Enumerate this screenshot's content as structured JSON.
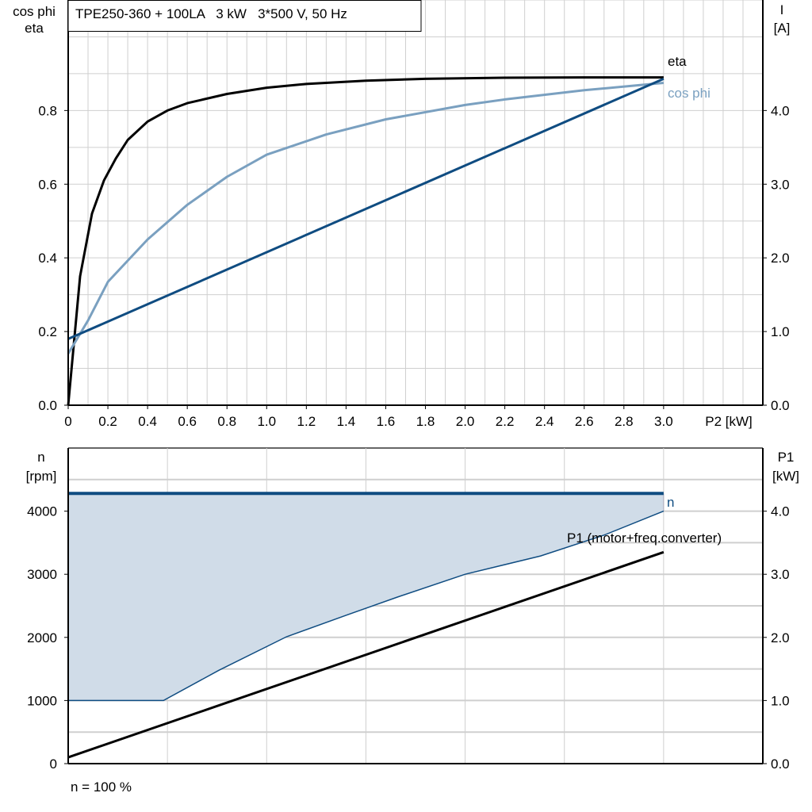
{
  "chart_data": [
    {
      "type": "line",
      "title": "TPE250-360 + 100LA   3 kW   3*500 V, 50 Hz",
      "xlabel": "P2 [kW]",
      "ylabel_left": [
        "cos phi",
        "eta"
      ],
      "ylabel_right": [
        "I",
        "[A]"
      ],
      "xlim": [
        0,
        3.5
      ],
      "ylim_left": [
        0,
        1.1
      ],
      "ylim_right": [
        0,
        5.5
      ],
      "grid": true,
      "x_ticks": [
        "0",
        "0.2",
        "0.4",
        "0.6",
        "0.8",
        "1.0",
        "1.2",
        "1.4",
        "1.6",
        "1.8",
        "2.0",
        "2.2",
        "2.4",
        "2.6",
        "2.8",
        "3.0"
      ],
      "y_ticks_left": [
        "0.0",
        "0.2",
        "0.4",
        "0.6",
        "0.8"
      ],
      "y_ticks_right": [
        "0.0",
        "1.0",
        "2.0",
        "3.0",
        "4.0"
      ],
      "series": [
        {
          "name": "eta",
          "axis": "left",
          "color": "#000000",
          "x": [
            0,
            0.06,
            0.12,
            0.18,
            0.24,
            0.3,
            0.4,
            0.5,
            0.6,
            0.8,
            1.0,
            1.2,
            1.5,
            1.8,
            2.2,
            2.6,
            3.0
          ],
          "y": [
            0,
            0.35,
            0.52,
            0.61,
            0.67,
            0.72,
            0.77,
            0.8,
            0.82,
            0.845,
            0.862,
            0.872,
            0.881,
            0.886,
            0.889,
            0.89,
            0.89
          ]
        },
        {
          "name": "cos phi",
          "axis": "left",
          "color": "#7aa0c0",
          "x": [
            0,
            0.1,
            0.2,
            0.4,
            0.6,
            0.8,
            1.0,
            1.3,
            1.6,
            2.0,
            2.2,
            2.6,
            3.0
          ],
          "y": [
            0.14,
            0.23,
            0.335,
            0.45,
            0.544,
            0.62,
            0.68,
            0.735,
            0.776,
            0.815,
            0.83,
            0.855,
            0.875
          ]
        },
        {
          "axis": "right",
          "color": "#0f4c81",
          "x": [
            0,
            3.0
          ],
          "y": [
            0.9,
            4.43
          ]
        }
      ]
    },
    {
      "type": "area",
      "xlabel": "",
      "ylabel_left": [
        "n",
        "[rpm]"
      ],
      "ylabel_right": [
        "P1",
        "[kW]"
      ],
      "xlim": [
        0,
        3.5
      ],
      "ylim_left": [
        0,
        5000
      ],
      "ylim_right": [
        0,
        5.0
      ],
      "grid": true,
      "y_ticks_left": [
        "0",
        "1000",
        "2000",
        "3000",
        "4000"
      ],
      "y_ticks_right": [
        "0.0",
        "1.0",
        "2.0",
        "3.0",
        "4.0"
      ],
      "footnote": "n = 100 %",
      "fill_color": "#d0dce8",
      "series": [
        {
          "name": "n",
          "axis": "left",
          "color": "#0f4c81",
          "x": [
            0,
            3.0
          ],
          "y": [
            4280,
            4280
          ]
        },
        {
          "axis": "left",
          "color": "#0f4c81",
          "x": [
            0,
            0.48,
            0.76,
            1.1,
            1.4,
            1.66,
            2.0,
            2.38,
            2.7,
            3.0
          ],
          "y": [
            1000,
            1000,
            1480,
            2010,
            2350,
            2640,
            3000,
            3290,
            3620,
            4000
          ]
        },
        {
          "name": "P1 (motor+freq.converter)",
          "axis": "right",
          "color": "#000000",
          "x": [
            0,
            3.0
          ],
          "y": [
            0.1,
            3.35
          ]
        }
      ]
    }
  ]
}
